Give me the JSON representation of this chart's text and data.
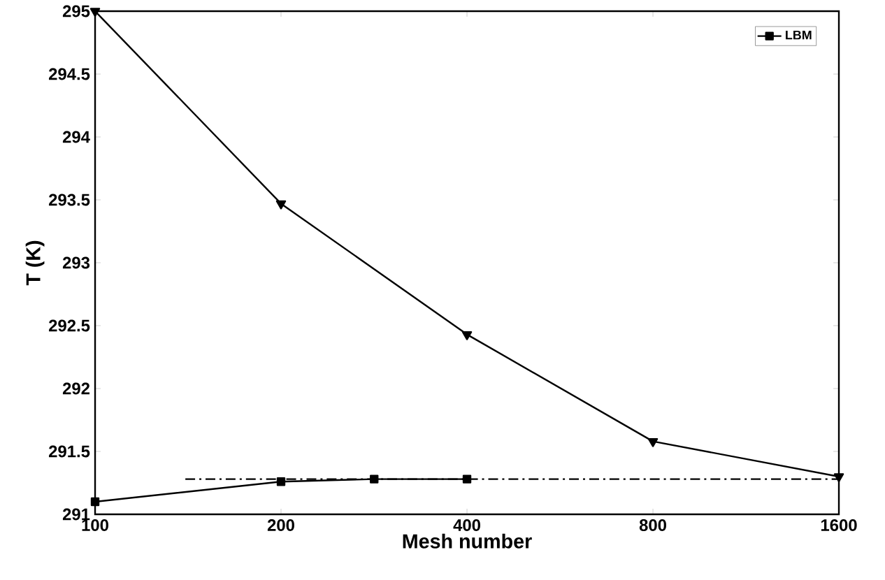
{
  "chart_data": {
    "type": "line",
    "xlabel": "Mesh number",
    "ylabel": "T (K)",
    "log": "x",
    "xlim": [
      100,
      1600
    ],
    "xticks": [
      100,
      200,
      400,
      800,
      1600
    ],
    "ylim": [
      291,
      295
    ],
    "yticks": [
      291,
      291.5,
      292,
      292.5,
      293,
      293.5,
      294,
      294.5,
      295
    ],
    "legend": "top right",
    "grid": false,
    "series": [
      {
        "name": "LBM",
        "color": "#000000",
        "marker": "square",
        "line_style": "solid",
        "x": [
          100,
          200,
          283,
          400
        ],
        "values": [
          291.1,
          291.26,
          291.28,
          291.28
        ]
      },
      {
        "color": "#000000",
        "marker": "triangle",
        "line_style": "solid",
        "x": [
          100,
          200,
          400,
          800,
          1600
        ],
        "values": [
          295.0,
          293.47,
          292.43,
          291.58,
          291.3
        ]
      },
      {
        "color": "#000000",
        "marker": "none",
        "line_style": "dashdot",
        "x": [
          140,
          1600
        ],
        "values": [
          291.28,
          291.28
        ]
      }
    ]
  }
}
